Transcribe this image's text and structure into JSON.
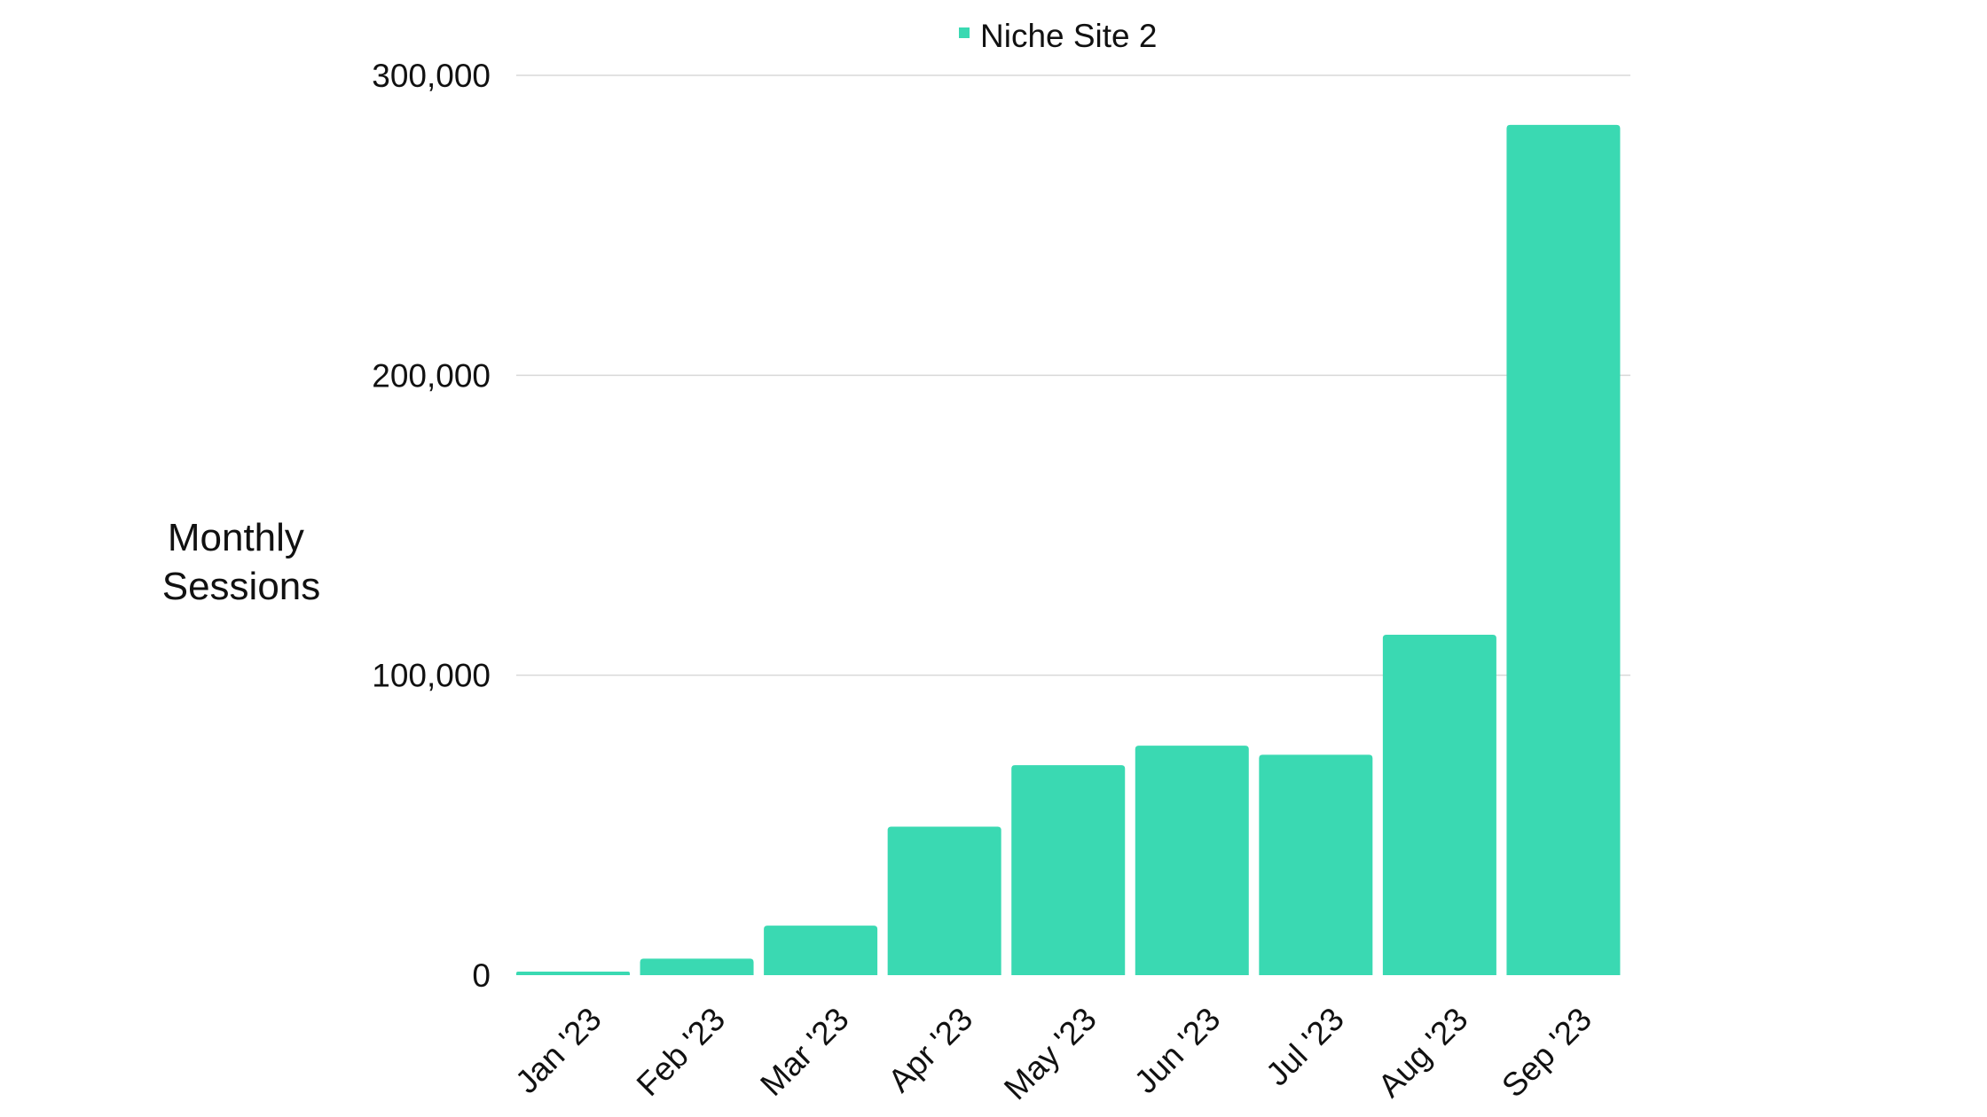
{
  "chart_data": {
    "type": "bar",
    "categories": [
      "Jan '23",
      "Feb '23",
      "Mar '23",
      "Apr '23",
      "May '23",
      "Jun '23",
      "Jul '23",
      "Aug '23",
      "Sep '23"
    ],
    "series": [
      {
        "name": "Niche Site 2",
        "values": [
          1200,
          5500,
          16500,
          49500,
          70000,
          76500,
          73500,
          113500,
          283500
        ]
      }
    ],
    "ylabel_lines": [
      "Monthly",
      "Sessions"
    ],
    "xlabel": "",
    "ylim": [
      0,
      300000
    ],
    "yticks": [
      {
        "value": 0,
        "label": "0"
      },
      {
        "value": 100000,
        "label": "100,000"
      },
      {
        "value": 200000,
        "label": "200,000"
      },
      {
        "value": 300000,
        "label": "300,000"
      }
    ],
    "grid": true,
    "legend_position": "top-center",
    "bar_color": "#3ad9b2",
    "grid_color": "#d9d9d9"
  }
}
